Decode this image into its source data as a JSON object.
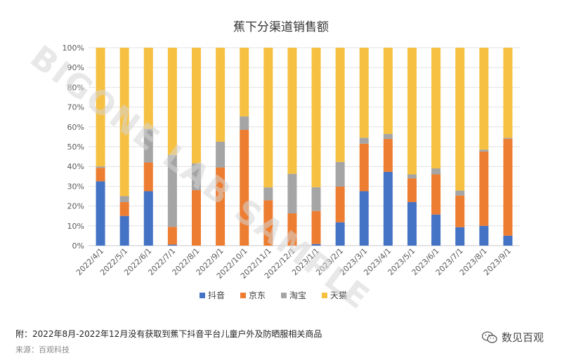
{
  "chart_data": {
    "type": "bar",
    "stacked": true,
    "percent": true,
    "title": "蕉下分渠道销售额",
    "categories": [
      "2022/4/1",
      "2022/5/1",
      "2022/6/1",
      "2022/7/1",
      "2022/8/1",
      "2022/9/1",
      "2022/10/1",
      "2022/11/1",
      "2022/12/1",
      "2023/1/1",
      "2023/2/1",
      "2023/3/1",
      "2023/4/1",
      "2023/5/1",
      "2023/6/1",
      "2023/7/1",
      "2023/8/1",
      "2023/9/1"
    ],
    "series": [
      {
        "name": "抖音",
        "color": "#4472C4",
        "values": [
          32.5,
          15,
          27.5,
          0.5,
          0,
          0,
          0,
          0,
          0,
          0.8,
          11.8,
          27.5,
          37.3,
          22,
          15.7,
          9.3,
          10,
          5
        ]
      },
      {
        "name": "京东",
        "color": "#ED7D31",
        "values": [
          6.8,
          7,
          14.5,
          9,
          28,
          39.5,
          58.5,
          22.9,
          16.3,
          16.7,
          18,
          24,
          16.6,
          12,
          20.3,
          16,
          37.5,
          49
        ]
      },
      {
        "name": "淘宝",
        "color": "#A5A5A5",
        "values": [
          0.7,
          3,
          17,
          36.3,
          13.5,
          13,
          6.8,
          6.5,
          20,
          12,
          12.5,
          3,
          2.5,
          2,
          3,
          2.5,
          1,
          0.5
        ]
      },
      {
        "name": "天猫",
        "color": "#F6C142",
        "values": [
          60,
          75,
          41,
          54.2,
          58.5,
          47.5,
          34.7,
          70.6,
          63.7,
          70.5,
          57.7,
          45.5,
          43.6,
          64,
          61,
          72.2,
          51.5,
          45.5
        ]
      }
    ],
    "ylim": [
      0,
      100
    ],
    "yticks": [
      "0%",
      "10%",
      "20%",
      "30%",
      "40%",
      "50%",
      "60%",
      "70%",
      "80%",
      "90%",
      "100%"
    ],
    "grid": true,
    "legend_position": "bottom"
  },
  "watermark": "BIGONE LAB SAMPLE",
  "footnote": "附：2022年8月-2022年12月没有获取到蕉下抖音平台儿童户外及防晒服相关商品",
  "source": "来源：百观科技",
  "brand": "数见百观"
}
